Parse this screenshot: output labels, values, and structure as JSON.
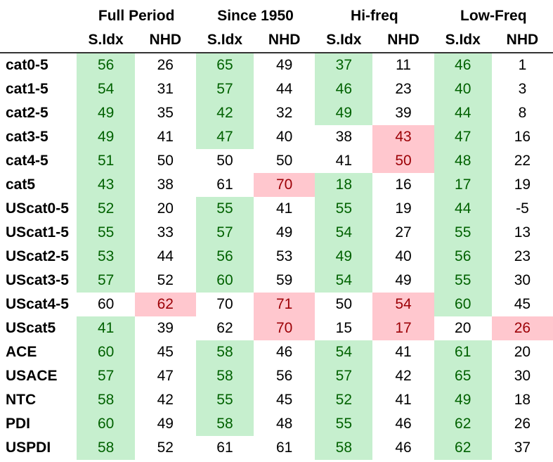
{
  "groups": [
    "Full Period",
    "Since 1950",
    "Hi-freq",
    "Low-Freq"
  ],
  "subheaders": [
    "S.Idx",
    "NHD"
  ],
  "colors": {
    "green_bg": "#c6efce",
    "green_text": "#006100",
    "red_bg": "#ffc7ce",
    "red_text": "#9c0006"
  },
  "rows": [
    {
      "label": "cat0-5",
      "cells": [
        {
          "v": "56",
          "h": "g"
        },
        {
          "v": "26",
          "h": ""
        },
        {
          "v": "65",
          "h": "g"
        },
        {
          "v": "49",
          "h": ""
        },
        {
          "v": "37",
          "h": "g"
        },
        {
          "v": "11",
          "h": ""
        },
        {
          "v": "46",
          "h": "g"
        },
        {
          "v": "1",
          "h": ""
        }
      ]
    },
    {
      "label": "cat1-5",
      "cells": [
        {
          "v": "54",
          "h": "g"
        },
        {
          "v": "31",
          "h": ""
        },
        {
          "v": "57",
          "h": "g"
        },
        {
          "v": "44",
          "h": ""
        },
        {
          "v": "46",
          "h": "g"
        },
        {
          "v": "23",
          "h": ""
        },
        {
          "v": "40",
          "h": "g"
        },
        {
          "v": "3",
          "h": ""
        }
      ]
    },
    {
      "label": "cat2-5",
      "cells": [
        {
          "v": "49",
          "h": "g"
        },
        {
          "v": "35",
          "h": ""
        },
        {
          "v": "42",
          "h": "g"
        },
        {
          "v": "32",
          "h": ""
        },
        {
          "v": "49",
          "h": "g"
        },
        {
          "v": "39",
          "h": ""
        },
        {
          "v": "44",
          "h": "g"
        },
        {
          "v": "8",
          "h": ""
        }
      ]
    },
    {
      "label": "cat3-5",
      "cells": [
        {
          "v": "49",
          "h": "g"
        },
        {
          "v": "41",
          "h": ""
        },
        {
          "v": "47",
          "h": "g"
        },
        {
          "v": "40",
          "h": ""
        },
        {
          "v": "38",
          "h": ""
        },
        {
          "v": "43",
          "h": "r"
        },
        {
          "v": "47",
          "h": "g"
        },
        {
          "v": "16",
          "h": ""
        }
      ]
    },
    {
      "label": "cat4-5",
      "cells": [
        {
          "v": "51",
          "h": "g"
        },
        {
          "v": "50",
          "h": ""
        },
        {
          "v": "50",
          "h": ""
        },
        {
          "v": "50",
          "h": ""
        },
        {
          "v": "41",
          "h": ""
        },
        {
          "v": "50",
          "h": "r"
        },
        {
          "v": "48",
          "h": "g"
        },
        {
          "v": "22",
          "h": ""
        }
      ]
    },
    {
      "label": "cat5",
      "cells": [
        {
          "v": "43",
          "h": "g"
        },
        {
          "v": "38",
          "h": ""
        },
        {
          "v": "61",
          "h": ""
        },
        {
          "v": "70",
          "h": "r"
        },
        {
          "v": "18",
          "h": "g"
        },
        {
          "v": "16",
          "h": ""
        },
        {
          "v": "17",
          "h": "g"
        },
        {
          "v": "19",
          "h": ""
        }
      ]
    },
    {
      "label": "UScat0-5",
      "cells": [
        {
          "v": "52",
          "h": "g"
        },
        {
          "v": "20",
          "h": ""
        },
        {
          "v": "55",
          "h": "g"
        },
        {
          "v": "41",
          "h": ""
        },
        {
          "v": "55",
          "h": "g"
        },
        {
          "v": "19",
          "h": ""
        },
        {
          "v": "44",
          "h": "g"
        },
        {
          "v": "-5",
          "h": ""
        }
      ]
    },
    {
      "label": "UScat1-5",
      "cells": [
        {
          "v": "55",
          "h": "g"
        },
        {
          "v": "33",
          "h": ""
        },
        {
          "v": "57",
          "h": "g"
        },
        {
          "v": "49",
          "h": ""
        },
        {
          "v": "54",
          "h": "g"
        },
        {
          "v": "27",
          "h": ""
        },
        {
          "v": "55",
          "h": "g"
        },
        {
          "v": "13",
          "h": ""
        }
      ]
    },
    {
      "label": "UScat2-5",
      "cells": [
        {
          "v": "53",
          "h": "g"
        },
        {
          "v": "44",
          "h": ""
        },
        {
          "v": "56",
          "h": "g"
        },
        {
          "v": "53",
          "h": ""
        },
        {
          "v": "49",
          "h": "g"
        },
        {
          "v": "40",
          "h": ""
        },
        {
          "v": "56",
          "h": "g"
        },
        {
          "v": "23",
          "h": ""
        }
      ]
    },
    {
      "label": "UScat3-5",
      "cells": [
        {
          "v": "57",
          "h": "g"
        },
        {
          "v": "52",
          "h": ""
        },
        {
          "v": "60",
          "h": "g"
        },
        {
          "v": "59",
          "h": ""
        },
        {
          "v": "54",
          "h": "g"
        },
        {
          "v": "49",
          "h": ""
        },
        {
          "v": "55",
          "h": "g"
        },
        {
          "v": "30",
          "h": ""
        }
      ]
    },
    {
      "label": "UScat4-5",
      "cells": [
        {
          "v": "60",
          "h": ""
        },
        {
          "v": "62",
          "h": "r"
        },
        {
          "v": "70",
          "h": ""
        },
        {
          "v": "71",
          "h": "r"
        },
        {
          "v": "50",
          "h": ""
        },
        {
          "v": "54",
          "h": "r"
        },
        {
          "v": "60",
          "h": "g"
        },
        {
          "v": "45",
          "h": ""
        }
      ]
    },
    {
      "label": "UScat5",
      "cells": [
        {
          "v": "41",
          "h": "g"
        },
        {
          "v": "39",
          "h": ""
        },
        {
          "v": "62",
          "h": ""
        },
        {
          "v": "70",
          "h": "r"
        },
        {
          "v": "15",
          "h": ""
        },
        {
          "v": "17",
          "h": "r"
        },
        {
          "v": "20",
          "h": ""
        },
        {
          "v": "26",
          "h": "r"
        }
      ]
    },
    {
      "label": "ACE",
      "cells": [
        {
          "v": "60",
          "h": "g"
        },
        {
          "v": "45",
          "h": ""
        },
        {
          "v": "58",
          "h": "g"
        },
        {
          "v": "46",
          "h": ""
        },
        {
          "v": "54",
          "h": "g"
        },
        {
          "v": "41",
          "h": ""
        },
        {
          "v": "61",
          "h": "g"
        },
        {
          "v": "20",
          "h": ""
        }
      ]
    },
    {
      "label": "USACE",
      "cells": [
        {
          "v": "57",
          "h": "g"
        },
        {
          "v": "47",
          "h": ""
        },
        {
          "v": "58",
          "h": "g"
        },
        {
          "v": "56",
          "h": ""
        },
        {
          "v": "57",
          "h": "g"
        },
        {
          "v": "42",
          "h": ""
        },
        {
          "v": "65",
          "h": "g"
        },
        {
          "v": "30",
          "h": ""
        }
      ]
    },
    {
      "label": "NTC",
      "cells": [
        {
          "v": "58",
          "h": "g"
        },
        {
          "v": "42",
          "h": ""
        },
        {
          "v": "55",
          "h": "g"
        },
        {
          "v": "45",
          "h": ""
        },
        {
          "v": "52",
          "h": "g"
        },
        {
          "v": "41",
          "h": ""
        },
        {
          "v": "49",
          "h": "g"
        },
        {
          "v": "18",
          "h": ""
        }
      ]
    },
    {
      "label": "PDI",
      "cells": [
        {
          "v": "60",
          "h": "g"
        },
        {
          "v": "49",
          "h": ""
        },
        {
          "v": "58",
          "h": "g"
        },
        {
          "v": "48",
          "h": ""
        },
        {
          "v": "55",
          "h": "g"
        },
        {
          "v": "46",
          "h": ""
        },
        {
          "v": "62",
          "h": "g"
        },
        {
          "v": "26",
          "h": ""
        }
      ]
    },
    {
      "label": "USPDI",
      "cells": [
        {
          "v": "58",
          "h": "g"
        },
        {
          "v": "52",
          "h": ""
        },
        {
          "v": "61",
          "h": ""
        },
        {
          "v": "61",
          "h": ""
        },
        {
          "v": "58",
          "h": "g"
        },
        {
          "v": "46",
          "h": ""
        },
        {
          "v": "62",
          "h": "g"
        },
        {
          "v": "37",
          "h": ""
        }
      ]
    }
  ]
}
